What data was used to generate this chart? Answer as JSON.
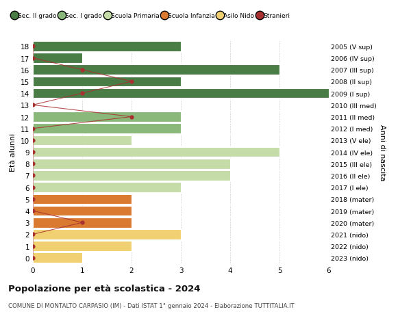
{
  "ages": [
    18,
    17,
    16,
    15,
    14,
    13,
    12,
    11,
    10,
    9,
    8,
    7,
    6,
    5,
    4,
    3,
    2,
    1,
    0
  ],
  "years": [
    "2005 (V sup)",
    "2006 (IV sup)",
    "2007 (III sup)",
    "2008 (II sup)",
    "2009 (I sup)",
    "2010 (III med)",
    "2011 (II med)",
    "2012 (I med)",
    "2013 (V ele)",
    "2014 (IV ele)",
    "2015 (III ele)",
    "2016 (II ele)",
    "2017 (I ele)",
    "2018 (mater)",
    "2019 (mater)",
    "2020 (mater)",
    "2021 (nido)",
    "2022 (nido)",
    "2023 (nido)"
  ],
  "bar_values": [
    3,
    1,
    5,
    3,
    6,
    0,
    3,
    3,
    2,
    5,
    4,
    4,
    3,
    2,
    2,
    2,
    3,
    2,
    1
  ],
  "bar_colors": [
    "#4a7c45",
    "#4a7c45",
    "#4a7c45",
    "#4a7c45",
    "#4a7c45",
    "#8ab87a",
    "#8ab87a",
    "#8ab87a",
    "#c5dba8",
    "#c5dba8",
    "#c5dba8",
    "#c5dba8",
    "#c5dba8",
    "#d97a30",
    "#d97a30",
    "#d97a30",
    "#f0d070",
    "#f0d070",
    "#f0d070"
  ],
  "stranieri_ages": [
    18,
    17,
    16,
    15,
    14,
    13,
    12,
    11,
    10,
    9,
    8,
    7,
    6,
    5,
    4,
    3,
    2,
    1,
    0
  ],
  "stranieri_values": [
    0,
    0,
    1,
    2,
    1,
    0,
    2,
    0,
    0,
    0,
    0,
    0,
    0,
    0,
    0,
    1,
    0,
    0,
    0
  ],
  "stranieri_color": "#a83030",
  "title": "Popolazione per età scolastica - 2024",
  "subtitle": "COMUNE DI MONTALTO CARPASIO (IM) - Dati ISTAT 1° gennaio 2024 - Elaborazione TUTTITALIA.IT",
  "ylabel_left": "Età alunni",
  "ylabel_right": "Anni di nascita",
  "xlim": [
    0,
    6
  ],
  "legend_labels": [
    "Sec. II grado",
    "Sec. I grado",
    "Scuola Primaria",
    "Scuola Infanzia",
    "Asilo Nido",
    "Stranieri"
  ],
  "legend_colors": [
    "#4a7c45",
    "#8ab87a",
    "#c5dba8",
    "#d97a30",
    "#f0d070",
    "#a83030"
  ],
  "bg_color": "#ffffff",
  "grid_color": "#cccccc"
}
